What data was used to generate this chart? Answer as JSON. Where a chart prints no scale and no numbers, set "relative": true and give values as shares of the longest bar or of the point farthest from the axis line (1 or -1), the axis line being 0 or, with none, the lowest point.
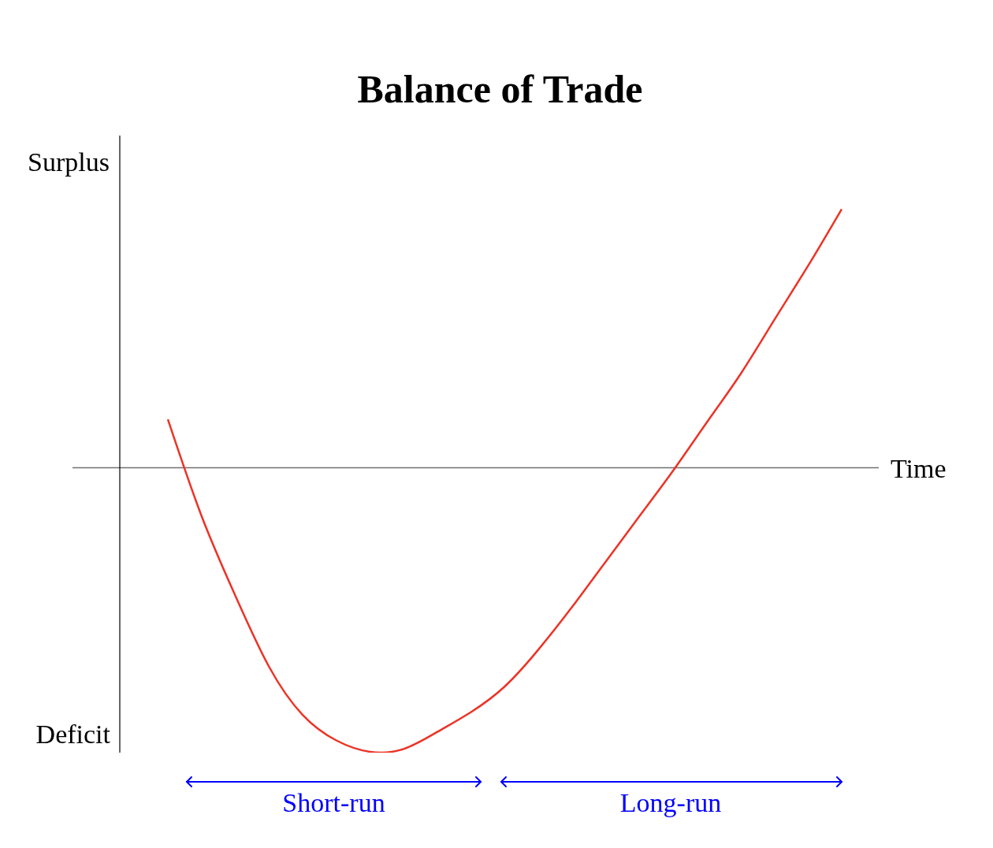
{
  "chart_data": {
    "type": "line",
    "title": "Balance of Trade",
    "xlabel": "Time",
    "annotations": [
      "Surplus",
      "Deficit",
      "Short-run",
      "Long-run"
    ],
    "relative": true,
    "categories": [
      null,
      null,
      null,
      null,
      null,
      null,
      null,
      null,
      null,
      null,
      null,
      null,
      null,
      null,
      null,
      null,
      null,
      null,
      null,
      null,
      null
    ],
    "values": [
      0.17,
      -0.17,
      -0.45,
      -0.7,
      -0.87,
      -0.96,
      -1,
      -0.99,
      -0.93,
      -0.86,
      -0.77,
      -0.64,
      -0.49,
      -0.33,
      -0.17,
      -0.01,
      0.16,
      0.33,
      0.52,
      0.71,
      0.91
    ],
    "color": "#ec3326"
  }
}
